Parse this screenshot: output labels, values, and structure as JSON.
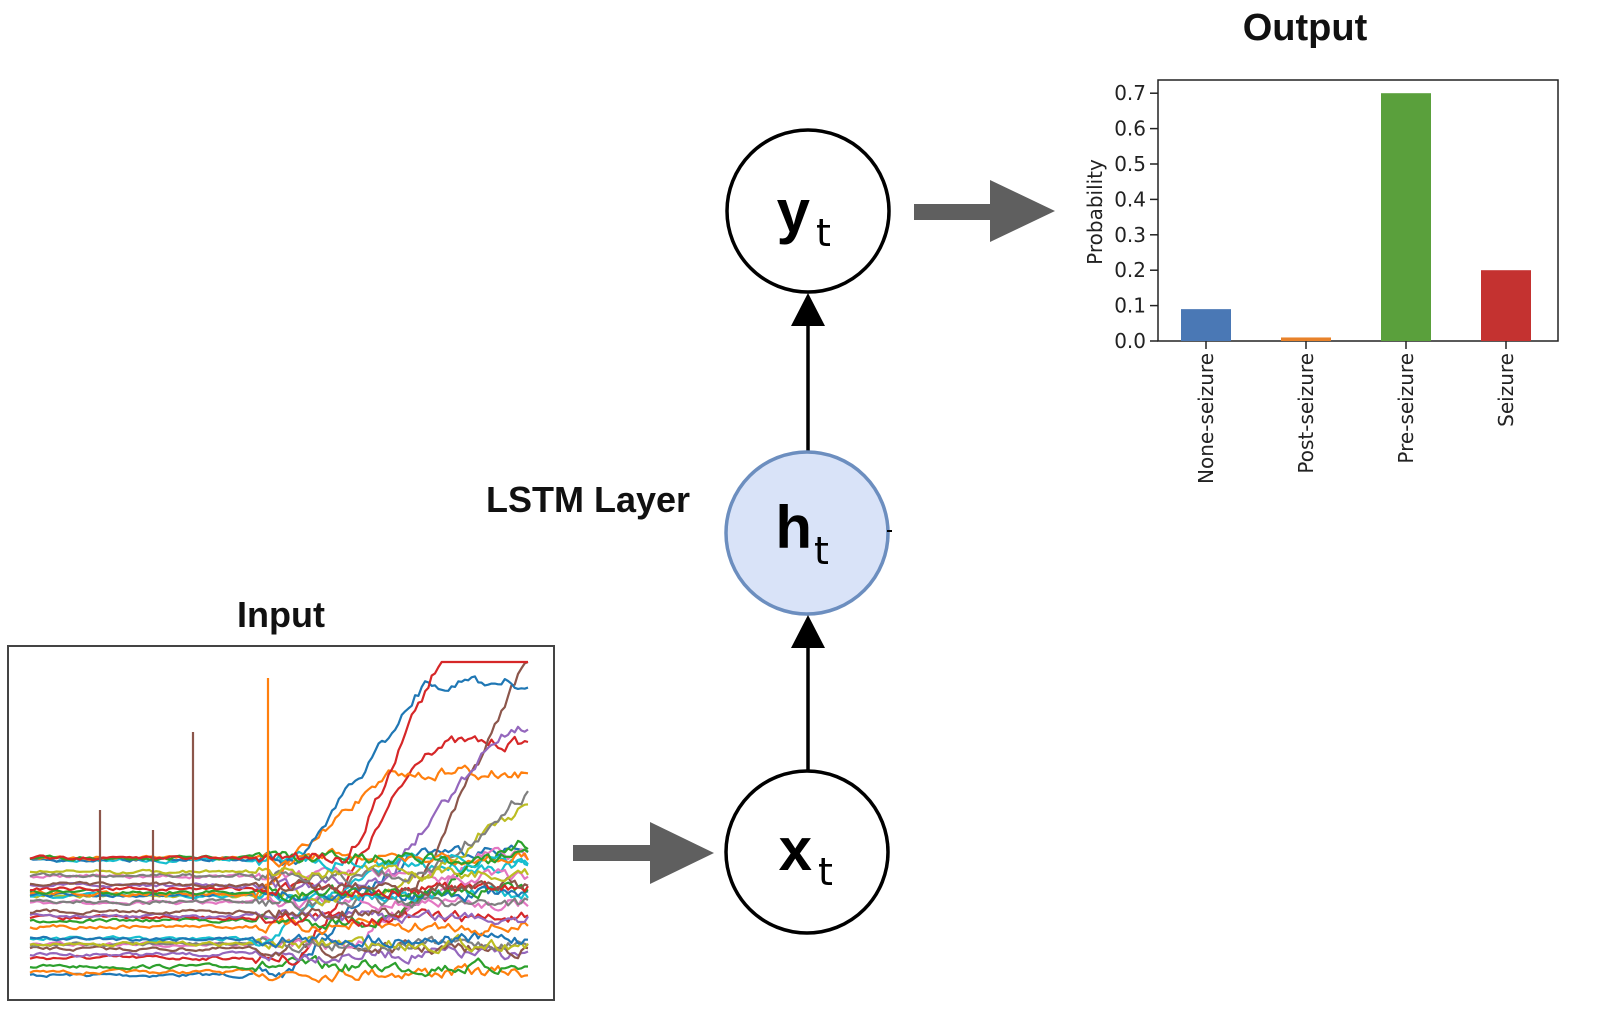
{
  "diagram": {
    "input_title": "Input",
    "output_title": "Output",
    "layer_label": "LSTM Layer",
    "nodes": {
      "x": {
        "main": "x",
        "sub": "t"
      },
      "h": {
        "main": "h",
        "sub": "t"
      },
      "y": {
        "main": "y",
        "sub": "t"
      }
    },
    "colors": {
      "hidden_fill": "#d9e3f8",
      "hidden_stroke": "#6c8ebf",
      "arrow_gray": "#5f5f5f"
    }
  },
  "chart_data": {
    "type": "bar",
    "ylabel": "Probability",
    "ylim": [
      0,
      0.73
    ],
    "yticks": [
      "0.0",
      "0.1",
      "0.2",
      "0.3",
      "0.4",
      "0.5",
      "0.6",
      "0.7"
    ],
    "categories": [
      "None-seizure",
      "Post-seizure",
      "Pre-seizure",
      "Seizure"
    ],
    "values": [
      0.09,
      0.01,
      0.7,
      0.2
    ],
    "colors": [
      "#4a78b5",
      "#e8822a",
      "#5aa03c",
      "#c43230"
    ]
  }
}
